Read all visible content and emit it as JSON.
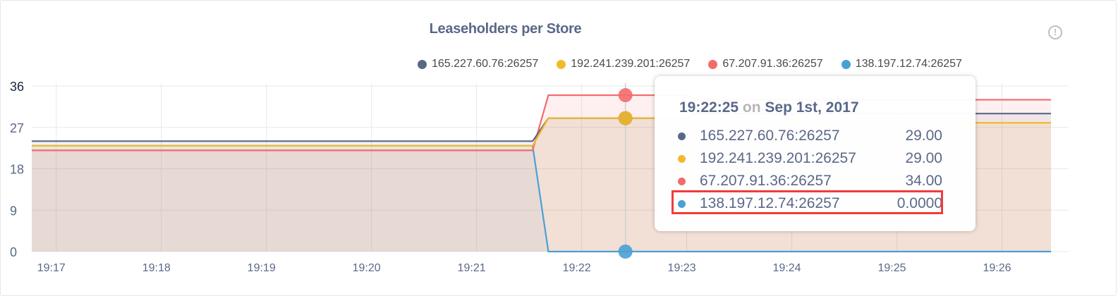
{
  "colors": {
    "series": [
      "#5a6888",
      "#f2ba2b",
      "#f26b6b",
      "#4aa0d6"
    ],
    "grid": "#e8e8e8",
    "highlight": "#f23b3b"
  },
  "info_icon": "exclamation-circle-icon",
  "chart_data": {
    "type": "line",
    "title": "Leaseholders per Store",
    "ylim": [
      0,
      36
    ],
    "yticks": [
      "0",
      "9",
      "18",
      "27",
      "36"
    ],
    "xticks": [
      "19:17",
      "19:18",
      "19:19",
      "19:20",
      "19:21",
      "19:22",
      "19:23",
      "19:24",
      "19:25",
      "19:26"
    ],
    "xlim": [
      "19:16:46",
      "19:26:28"
    ],
    "grid": true,
    "area_fill": true,
    "legend_position": "top",
    "x": [
      "19:16:46",
      "19:21:32",
      "19:21:41",
      "19:22:25",
      "19:23:00",
      "19:23:05",
      "19:26:28"
    ],
    "series": [
      {
        "name": "165.227.60.76:26257",
        "values": [
          24,
          24,
          29,
          29,
          29,
          30,
          30
        ]
      },
      {
        "name": "192.241.239.201:26257",
        "values": [
          23,
          23,
          29,
          29,
          29,
          28,
          28
        ]
      },
      {
        "name": "67.207.91.36:26257",
        "values": [
          22,
          22,
          34,
          34,
          34,
          33,
          33
        ]
      },
      {
        "name": "138.197.12.74:26257",
        "values": [
          23,
          23,
          0,
          0,
          0,
          0,
          0
        ]
      }
    ]
  },
  "tooltip": {
    "time": "19:22:25",
    "on": "on",
    "date": "Sep 1st, 2017",
    "rows": [
      {
        "name": "165.227.60.76:26257",
        "value": "29.00"
      },
      {
        "name": "192.241.239.201:26257",
        "value": "29.00"
      },
      {
        "name": "67.207.91.36:26257",
        "value": "34.00"
      },
      {
        "name": "138.197.12.74:26257",
        "value": "0.0000"
      }
    ],
    "highlighted_row": 3
  }
}
